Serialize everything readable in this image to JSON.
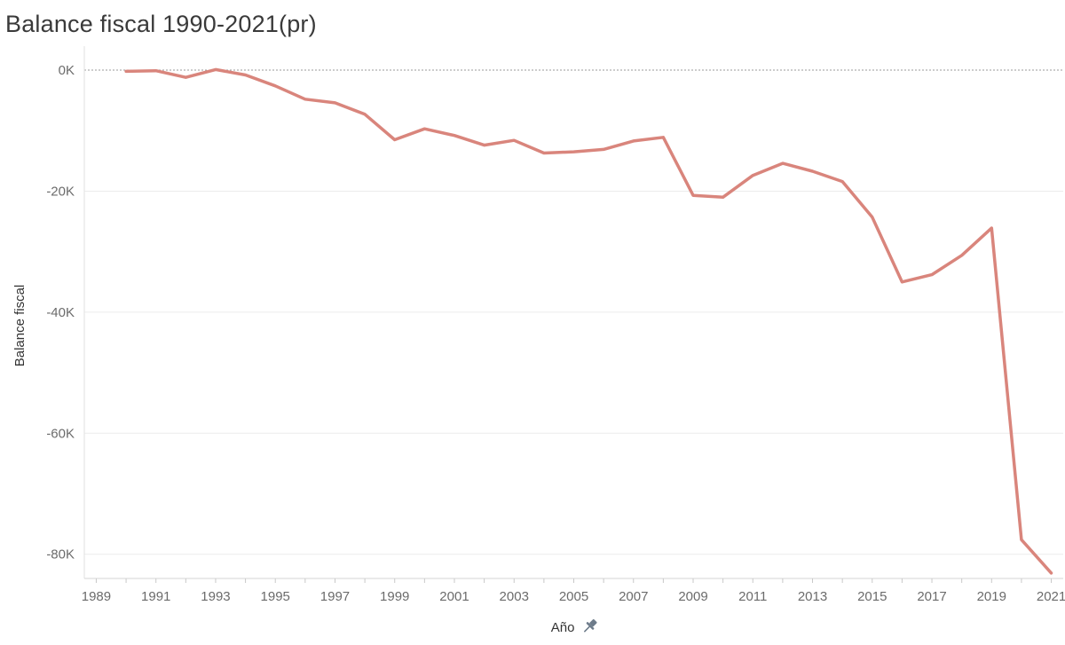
{
  "title": "Balance fiscal 1990-2021(pr)",
  "chart_data": {
    "type": "line",
    "title": "Balance fiscal 1990-2021(pr)",
    "xlabel": "Año",
    "ylabel": "Balance fiscal",
    "x_ticks": [
      "1989",
      "1991",
      "1993",
      "1995",
      "1997",
      "1999",
      "2001",
      "2003",
      "2005",
      "2007",
      "2009",
      "2011",
      "2013",
      "2015",
      "2017",
      "2019",
      "2021"
    ],
    "y_ticks": [
      "0K",
      "-20K",
      "-40K",
      "-60K",
      "-80K"
    ],
    "y_tick_values": [
      0,
      -20000,
      -40000,
      -60000,
      -80000
    ],
    "ylim": [
      -84000,
      2500
    ],
    "xlim": [
      1988.6,
      2021.4
    ],
    "grid": true,
    "zero_line": "dotted",
    "x_icon": "pin-icon",
    "color": "#d9857c",
    "series": [
      {
        "x": [
          1990,
          1991,
          1992,
          1993,
          1994,
          1995,
          1996,
          1997,
          1998,
          1999,
          2000,
          2001,
          2002,
          2003,
          2004,
          2005,
          2006,
          2007,
          2008,
          2009,
          2010,
          2011,
          2012,
          2013,
          2014,
          2015,
          2016,
          2017,
          2018,
          2019,
          2020,
          2021
        ],
        "values": [
          -200,
          -100,
          -1200,
          100,
          -800,
          -2600,
          -4800,
          -5400,
          -7300,
          -11500,
          -9700,
          -10800,
          -12400,
          -11600,
          -13700,
          -13500,
          -13100,
          -11700,
          -11100,
          -20700,
          -21000,
          -17400,
          -15400,
          -16700,
          -18400,
          -24300,
          -35000,
          -33800,
          -30600,
          -26100,
          -77600,
          -83100
        ]
      }
    ]
  }
}
